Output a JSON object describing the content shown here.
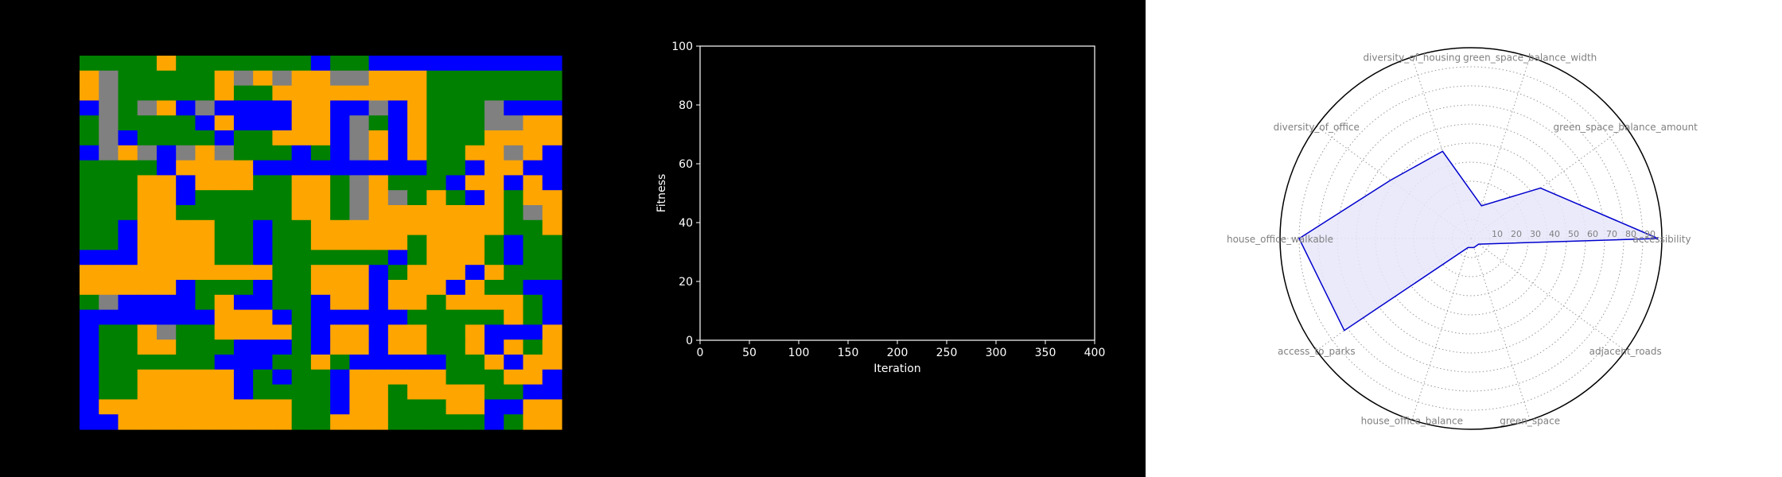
{
  "grid": {
    "legend": {
      "G": "green",
      "O": "orange",
      "B": "blue",
      "R": "road"
    },
    "colors": {
      "G": "#008000",
      "O": "#ffa500",
      "B": "#0000ff",
      "R": "#808080"
    },
    "rows": [
      "GGGGOGGGGGGGBGGBBBBBBBBBB",
      "ORGGGGGOROROORROOOGGGGGGG",
      "ORGGGGGOGGOOOOOOOOGGGGGGG",
      "BRGROBRBBBBOOBBRBOGGGRBBB",
      "GRGGGGBOBBBOOBRGBOGGGRROO",
      "GRBGGGGBGGOOOBROBOGGGOOOO",
      "BRORBRORGGGBGBROBOGGOOROB",
      "GGGGBOOOOBBBBBBBBBGGBOOBB",
      "GGGOOBOOOGGOOGROGGGBOOBOB",
      "GGGOOBGGGGGOOGRORGOGBOGOO",
      "GGGOOGGGGGGOOGROOOOOOOGRO",
      "GGBOOOOGGBGGOOOOOOOOOOGGO",
      "GGBOOOOGGBGGOOOOOGOOOGBGG",
      "BBBOOOOGGBGGGGGGBGOOOGBGG",
      "OOOOOOOOOOGGOOOBGOOOBOGGG",
      "OOOOOBGGGBGGOOOBOOOBOGGBB",
      "GRBBBBGOBBGGBOOBOOGOOOOGB",
      "BBBBBBBOOOBGBBBBBGGGGGOGB",
      "BGGORGGOOOOGBOOBOOGGOBBBO",
      "BGGOOGGGBBBGBOOBOOGGOBOGO",
      "BGGGGGGBBBGGOGBBBBBGGOBOO",
      "BGGOOOOOBGBGGBOOOOOGGGOOB",
      "BGGOOOOOBGGGGBOOGOOOOGGBB",
      "BOOOOOOOOOOGGBOOGGGOOBBOO",
      "BBOOOOOOOOOGGOOOGGGGGBGOO"
    ]
  },
  "chart_data": [
    {
      "type": "line",
      "xlabel": "Iteration",
      "ylabel": "Fitness",
      "xlim": [
        0,
        400
      ],
      "ylim": [
        0,
        100
      ],
      "xticks": [
        0,
        50,
        100,
        150,
        200,
        250,
        300,
        350,
        400
      ],
      "yticks": [
        0,
        20,
        40,
        60,
        80,
        100
      ],
      "series": [],
      "background": "#000000",
      "axis_color": "#ffffff"
    },
    {
      "type": "radar",
      "categories": [
        "accessibility",
        "green_space_balance_amount",
        "green_space_balance_width",
        "diversity_of_housing",
        "diversity_of_office",
        "house_office_walkable",
        "access_to_parks",
        "house_office_balance",
        "green_space",
        "adjacent_roads"
      ],
      "values": [
        98,
        45,
        18,
        48,
        52,
        90,
        82,
        5,
        5,
        5
      ],
      "radial_ticks": [
        10,
        20,
        30,
        40,
        50,
        60,
        70,
        80,
        90
      ],
      "rlim": [
        0,
        100
      ],
      "grid": true,
      "colors": {
        "line": "#0000cd",
        "fill": "#e6e6fa",
        "grid": "#999999",
        "label": "#808080"
      }
    }
  ]
}
